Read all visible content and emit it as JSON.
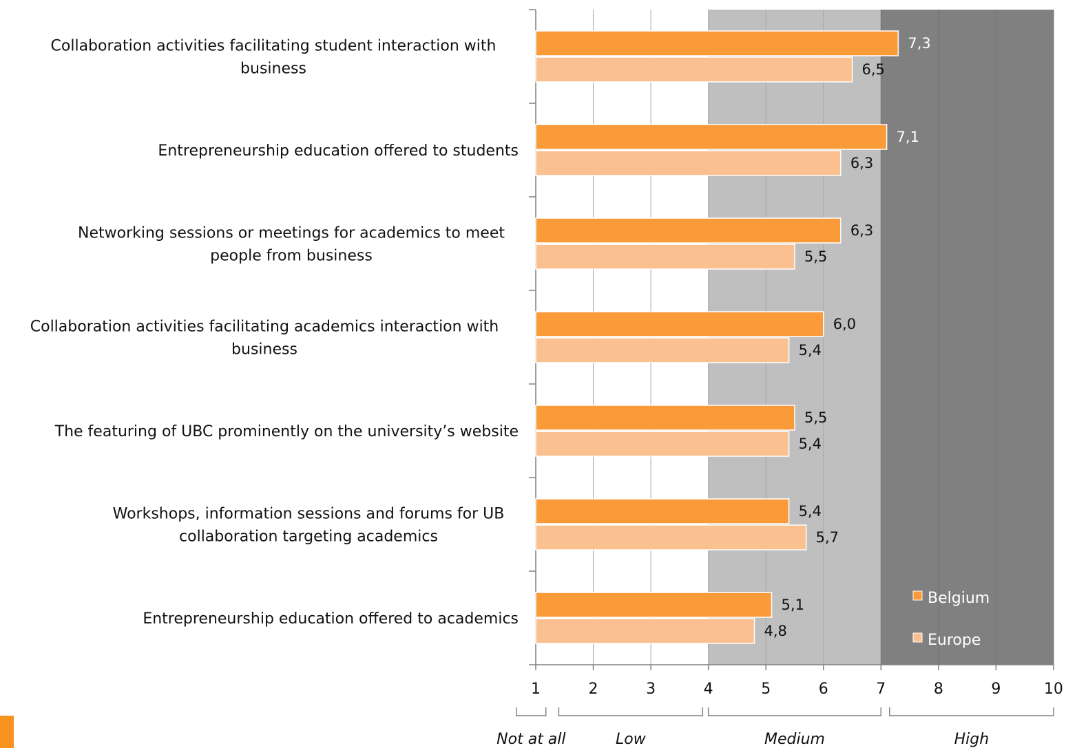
{
  "colors": {
    "belgium": "#fb9a38",
    "europe": "#fac090",
    "band_medium": "#bfbfbf",
    "band_high": "#808080",
    "accent": "#f7931e"
  },
  "chart_data": {
    "type": "bar",
    "orientation": "horizontal",
    "categories": [
      [
        "Collaboration activities facilitating student interaction with",
        "business"
      ],
      [
        "Entrepreneurship education offered to students"
      ],
      [
        "Networking sessions or meetings for academics to meet",
        "people from business"
      ],
      [
        "Collaboration activities facilitating academics interaction with",
        "business"
      ],
      [
        "The featuring of UBC prominently on the university’s website"
      ],
      [
        "Workshops, information sessions and forums for UB",
        "collaboration targeting academics"
      ],
      [
        "Entrepreneurship education offered to academics"
      ]
    ],
    "series": [
      {
        "name": "Belgium",
        "values": [
          7.3,
          7.1,
          6.3,
          6.0,
          5.5,
          5.4,
          5.1
        ],
        "labels": [
          "7,3",
          "7,1",
          "6,3",
          "6,0",
          "5,5",
          "5,4",
          "5,1"
        ]
      },
      {
        "name": "Europe",
        "values": [
          6.5,
          6.3,
          5.5,
          5.4,
          5.4,
          5.7,
          4.8
        ],
        "labels": [
          "6,5",
          "6,3",
          "5,5",
          "5,4",
          "5,4",
          "5,7",
          "4,8"
        ]
      }
    ],
    "xlim": [
      1,
      10
    ],
    "xticks": [
      "1",
      "2",
      "3",
      "4",
      "5",
      "6",
      "7",
      "8",
      "9",
      "10"
    ],
    "bands": [
      {
        "label": "Not at all",
        "from": 1,
        "to": 1.2
      },
      {
        "label": "Low",
        "from": 1.4,
        "to": 3.9
      },
      {
        "label": "Medium",
        "from": 4,
        "to": 7
      },
      {
        "label": "High",
        "from": 7.15,
        "to": 10
      }
    ],
    "grid": true,
    "legend": "bottom-right"
  }
}
